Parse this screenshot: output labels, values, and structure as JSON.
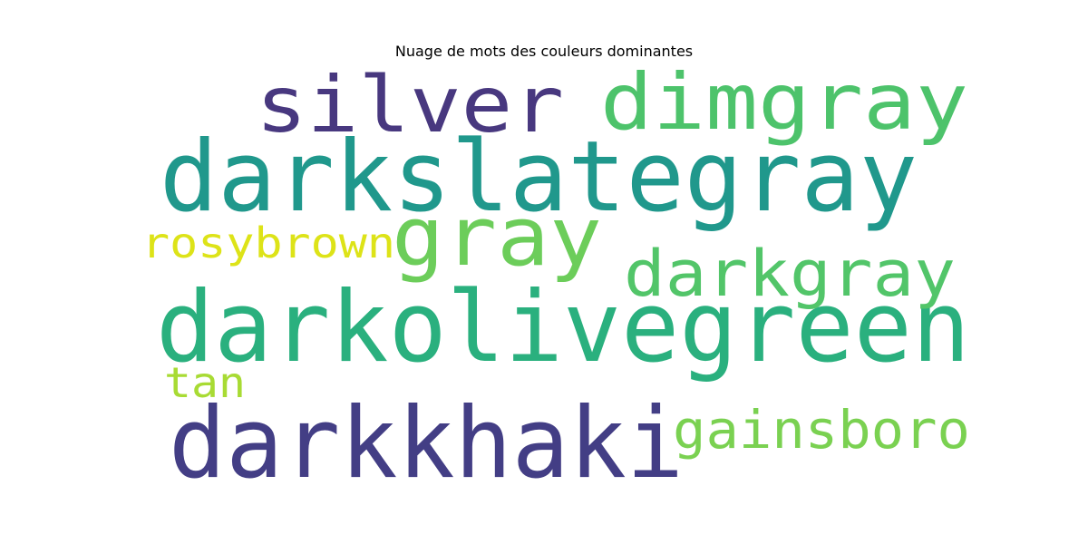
{
  "chart_data": {
    "type": "wordcloud",
    "title": "Nuage de mots des couleurs dominantes",
    "words": [
      {
        "text": "darkslategray",
        "color": "#20988c"
      },
      {
        "text": "darkolivegreen",
        "color": "#2ab07e"
      },
      {
        "text": "darkkhaki",
        "color": "#433e85"
      },
      {
        "text": "silver",
        "color": "#48387f"
      },
      {
        "text": "dimgray",
        "color": "#4dc36b"
      },
      {
        "text": "gray",
        "color": "#6ccd5a"
      },
      {
        "text": "darkgray",
        "color": "#52c569"
      },
      {
        "text": "gainsboro",
        "color": "#7ad151"
      },
      {
        "text": "rosybrown",
        "color": "#dde318"
      },
      {
        "text": "tan",
        "color": "#a8db34"
      }
    ]
  }
}
